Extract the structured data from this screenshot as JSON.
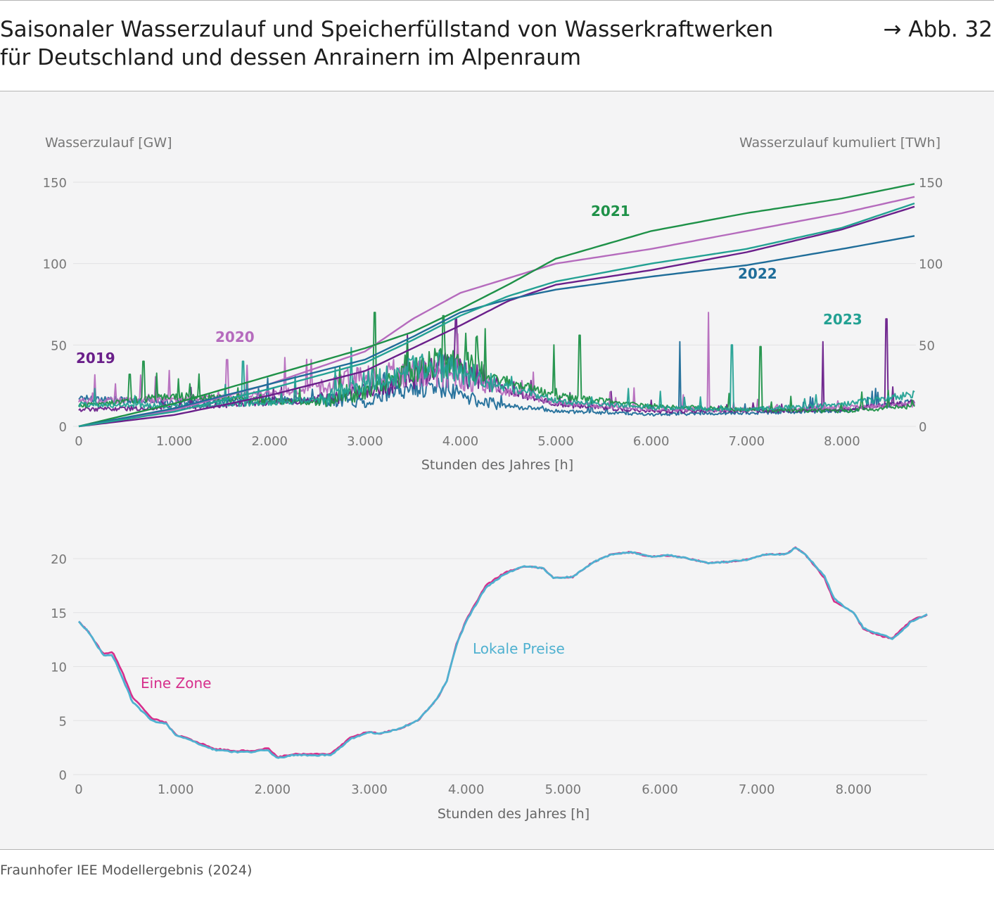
{
  "header": {
    "title_line1": "Saisonaler Wasserzulauf und Speicherfüllstand von Wasserkraftwerken",
    "title_line2": "für Deutschland und dessen Anrainern im Alpenraum",
    "figure_ref": "→ Abb. 32"
  },
  "footer": {
    "source": "Fraunhofer IEE Modellergebnis (2024)"
  },
  "colors": {
    "2019": "#6a1f8a",
    "2020": "#b56bbd",
    "2021": "#1e9148",
    "2022": "#1f6d99",
    "2023": "#23a193",
    "eine_zone": "#d62f8c",
    "lokale_preise": "#4fb1d0",
    "grid": "#e2e2e4",
    "axis": "#8a8a8a"
  },
  "chart_data": [
    {
      "type": "line",
      "title": "Wasserzulauf",
      "ylabel_left": "Wasserzulauf [GW]",
      "ylabel_right": "Wasserzulauf kumuliert [TWh]",
      "xlabel": "Stunden des Jahres [h]",
      "xlim": [
        0,
        8760
      ],
      "ylim": [
        0,
        150
      ],
      "x_ticks": [
        0,
        1000,
        2000,
        3000,
        4000,
        5000,
        6000,
        7000,
        8000
      ],
      "x_tick_labels": [
        "0",
        "1.000",
        "2.000",
        "3.000",
        "4.000",
        "5.000",
        "6.000",
        "7.000",
        "8.000"
      ],
      "y_ticks": [
        0,
        50,
        100,
        150
      ],
      "y_tick_labels": [
        "0",
        "50",
        "100",
        "150"
      ],
      "series_labels": [
        "2019",
        "2020",
        "2021",
        "2022",
        "2023"
      ],
      "cumulative_series": [
        {
          "name": "2019",
          "x": [
            0,
            1000,
            2000,
            3000,
            3500,
            4000,
            4500,
            5000,
            6000,
            7000,
            8000,
            8760
          ],
          "values": [
            0,
            7,
            19,
            34,
            48,
            62,
            77,
            87,
            96,
            107,
            121,
            135
          ]
        },
        {
          "name": "2020",
          "x": [
            0,
            1000,
            2000,
            3000,
            3500,
            4000,
            4500,
            5000,
            6000,
            7000,
            8000,
            8760
          ],
          "values": [
            0,
            10,
            26,
            46,
            66,
            82,
            91,
            100,
            109,
            120,
            131,
            141
          ]
        },
        {
          "name": "2021",
          "x": [
            0,
            1000,
            2000,
            3000,
            3500,
            4000,
            4500,
            5000,
            6000,
            7000,
            8000,
            8760
          ],
          "values": [
            0,
            14,
            31,
            48,
            58,
            72,
            87,
            103,
            120,
            131,
            140,
            149
          ]
        },
        {
          "name": "2022",
          "x": [
            0,
            1000,
            2000,
            3000,
            3500,
            4000,
            4500,
            5000,
            6000,
            7000,
            8000,
            8760
          ],
          "values": [
            0,
            11,
            26,
            41,
            55,
            70,
            78,
            84,
            92,
            99,
            109,
            117
          ]
        },
        {
          "name": "2023",
          "x": [
            0,
            1000,
            2000,
            3000,
            3500,
            4000,
            4500,
            5000,
            6000,
            7000,
            8000,
            8760
          ],
          "values": [
            0,
            9,
            23,
            39,
            53,
            68,
            80,
            89,
            100,
            109,
            122,
            137
          ]
        }
      ],
      "hourly_baseline": [
        {
          "name": "2019",
          "x": [
            0,
            1000,
            2000,
            2600,
            3000,
            3500,
            3800,
            4200,
            5000,
            6000,
            7000,
            8000,
            8760
          ],
          "values": [
            10,
            11,
            14,
            16,
            20,
            28,
            35,
            26,
            13,
            9,
            9,
            10,
            14
          ]
        },
        {
          "name": "2020",
          "x": [
            0,
            1000,
            2000,
            2600,
            3000,
            3500,
            3800,
            4200,
            5000,
            6000,
            7000,
            8000,
            8760
          ],
          "values": [
            15,
            16,
            19,
            24,
            28,
            30,
            30,
            24,
            14,
            10,
            10,
            11,
            13
          ]
        },
        {
          "name": "2021",
          "x": [
            0,
            1000,
            2000,
            2600,
            3000,
            3500,
            3800,
            4200,
            5000,
            6000,
            7000,
            8000,
            8760
          ],
          "values": [
            12,
            18,
            15,
            14,
            20,
            30,
            38,
            32,
            18,
            12,
            10,
            9,
            12
          ]
        },
        {
          "name": "2022",
          "x": [
            0,
            1000,
            2000,
            2600,
            3000,
            3500,
            3800,
            4200,
            5000,
            6000,
            7000,
            8000,
            8760
          ],
          "values": [
            17,
            14,
            16,
            15,
            14,
            22,
            22,
            14,
            9,
            7,
            8,
            9,
            15
          ]
        },
        {
          "name": "2023",
          "x": [
            0,
            1000,
            2000,
            2600,
            3000,
            3500,
            3800,
            4200,
            5000,
            6000,
            7000,
            8000,
            8760
          ],
          "values": [
            13,
            12,
            14,
            16,
            25,
            32,
            34,
            28,
            15,
            11,
            10,
            13,
            19
          ]
        }
      ],
      "notable_peaks": [
        {
          "name": "2021",
          "x": 3100,
          "value": 70
        },
        {
          "name": "2020",
          "x": 6600,
          "value": 70
        },
        {
          "name": "2019",
          "x": 8470,
          "value": 66
        },
        {
          "name": "2021",
          "x": 3820,
          "value": 68
        },
        {
          "name": "2019",
          "x": 3950,
          "value": 66
        },
        {
          "name": "2021",
          "x": 5250,
          "value": 56
        },
        {
          "name": "2022",
          "x": 6300,
          "value": 52
        },
        {
          "name": "2021",
          "x": 4980,
          "value": 50
        },
        {
          "name": "2023",
          "x": 6850,
          "value": 50
        },
        {
          "name": "2021",
          "x": 7150,
          "value": 49
        },
        {
          "name": "2019",
          "x": 7800,
          "value": 52
        },
        {
          "name": "2020",
          "x": 1550,
          "value": 41
        },
        {
          "name": "2023",
          "x": 1720,
          "value": 40
        },
        {
          "name": "2021",
          "x": 680,
          "value": 40
        },
        {
          "name": "2021",
          "x": 530,
          "value": 32
        }
      ]
    },
    {
      "type": "line",
      "title": "Speicherfüllstand",
      "xlabel": "Stunden des Jahres [h]",
      "xlim": [
        0,
        8760
      ],
      "ylim": [
        0,
        22
      ],
      "x_ticks": [
        0,
        1000,
        2000,
        3000,
        4000,
        5000,
        6000,
        7000,
        8000
      ],
      "x_tick_labels": [
        "0",
        "1.000",
        "2.000",
        "3.000",
        "4.000",
        "5.000",
        "6.000",
        "7.000",
        "8.000"
      ],
      "y_ticks": [
        0,
        5,
        10,
        15,
        20
      ],
      "y_tick_labels": [
        "0",
        "5",
        "10",
        "15",
        "20"
      ],
      "series": [
        {
          "name": "Eine Zone",
          "x": [
            0,
            100,
            250,
            350,
            450,
            550,
            650,
            750,
            900,
            1000,
            1200,
            1400,
            1600,
            1800,
            1950,
            2050,
            2200,
            2400,
            2600,
            2700,
            2800,
            3000,
            3100,
            3300,
            3500,
            3700,
            3800,
            3900,
            4000,
            4200,
            4400,
            4600,
            4800,
            4900,
            5100,
            5300,
            5500,
            5700,
            5900,
            6100,
            6300,
            6500,
            6700,
            6900,
            7100,
            7300,
            7400,
            7500,
            7700,
            7800,
            7900,
            8000,
            8100,
            8200,
            8300,
            8400,
            8500,
            8600,
            8760
          ],
          "values": [
            14.2,
            13.2,
            11.2,
            11.3,
            9.5,
            7.2,
            6.3,
            5.2,
            4.8,
            3.7,
            3.1,
            2.4,
            2.2,
            2.2,
            2.5,
            1.6,
            1.9,
            1.9,
            1.9,
            2.6,
            3.4,
            4.0,
            3.8,
            4.2,
            5.0,
            7.0,
            8.7,
            12.1,
            14.3,
            17.5,
            18.7,
            19.3,
            19.1,
            18.2,
            18.3,
            19.6,
            20.4,
            20.6,
            20.2,
            20.3,
            20.0,
            19.6,
            19.7,
            19.9,
            20.4,
            20.4,
            21.0,
            20.4,
            18.2,
            16.0,
            15.5,
            15.0,
            13.5,
            13.1,
            12.8,
            12.6,
            13.5,
            14.3,
            14.8
          ]
        },
        {
          "name": "Lokale Preise",
          "x": [
            0,
            100,
            250,
            350,
            450,
            550,
            650,
            750,
            900,
            1000,
            1200,
            1400,
            1600,
            1800,
            1950,
            2050,
            2200,
            2400,
            2600,
            2700,
            2800,
            3000,
            3100,
            3300,
            3500,
            3700,
            3800,
            3900,
            4000,
            4200,
            4400,
            4600,
            4800,
            4900,
            5100,
            5300,
            5500,
            5700,
            5900,
            6100,
            6300,
            6500,
            6700,
            6900,
            7100,
            7300,
            7400,
            7500,
            7700,
            7800,
            7900,
            8000,
            8100,
            8200,
            8300,
            8400,
            8500,
            8600,
            8760
          ],
          "values": [
            14.2,
            13.2,
            11.1,
            11.0,
            9.0,
            6.8,
            5.9,
            5.0,
            4.7,
            3.7,
            3.0,
            2.3,
            2.1,
            2.1,
            2.3,
            1.5,
            1.8,
            1.8,
            1.8,
            2.5,
            3.3,
            3.9,
            3.8,
            4.2,
            5.0,
            7.0,
            8.7,
            12.0,
            14.2,
            17.3,
            18.6,
            19.3,
            19.1,
            18.2,
            18.3,
            19.6,
            20.4,
            20.6,
            20.2,
            20.3,
            20.0,
            19.6,
            19.7,
            19.9,
            20.4,
            20.4,
            21.0,
            20.4,
            18.4,
            16.3,
            15.6,
            15.0,
            13.6,
            13.2,
            12.9,
            12.6,
            13.3,
            14.2,
            14.8
          ]
        }
      ]
    }
  ],
  "labels": {
    "2019": "2019",
    "2020": "2020",
    "2021": "2021",
    "2022": "2022",
    "2023": "2023",
    "eine_zone": "Eine Zone",
    "lokale_preise": "Lokale Preise"
  }
}
